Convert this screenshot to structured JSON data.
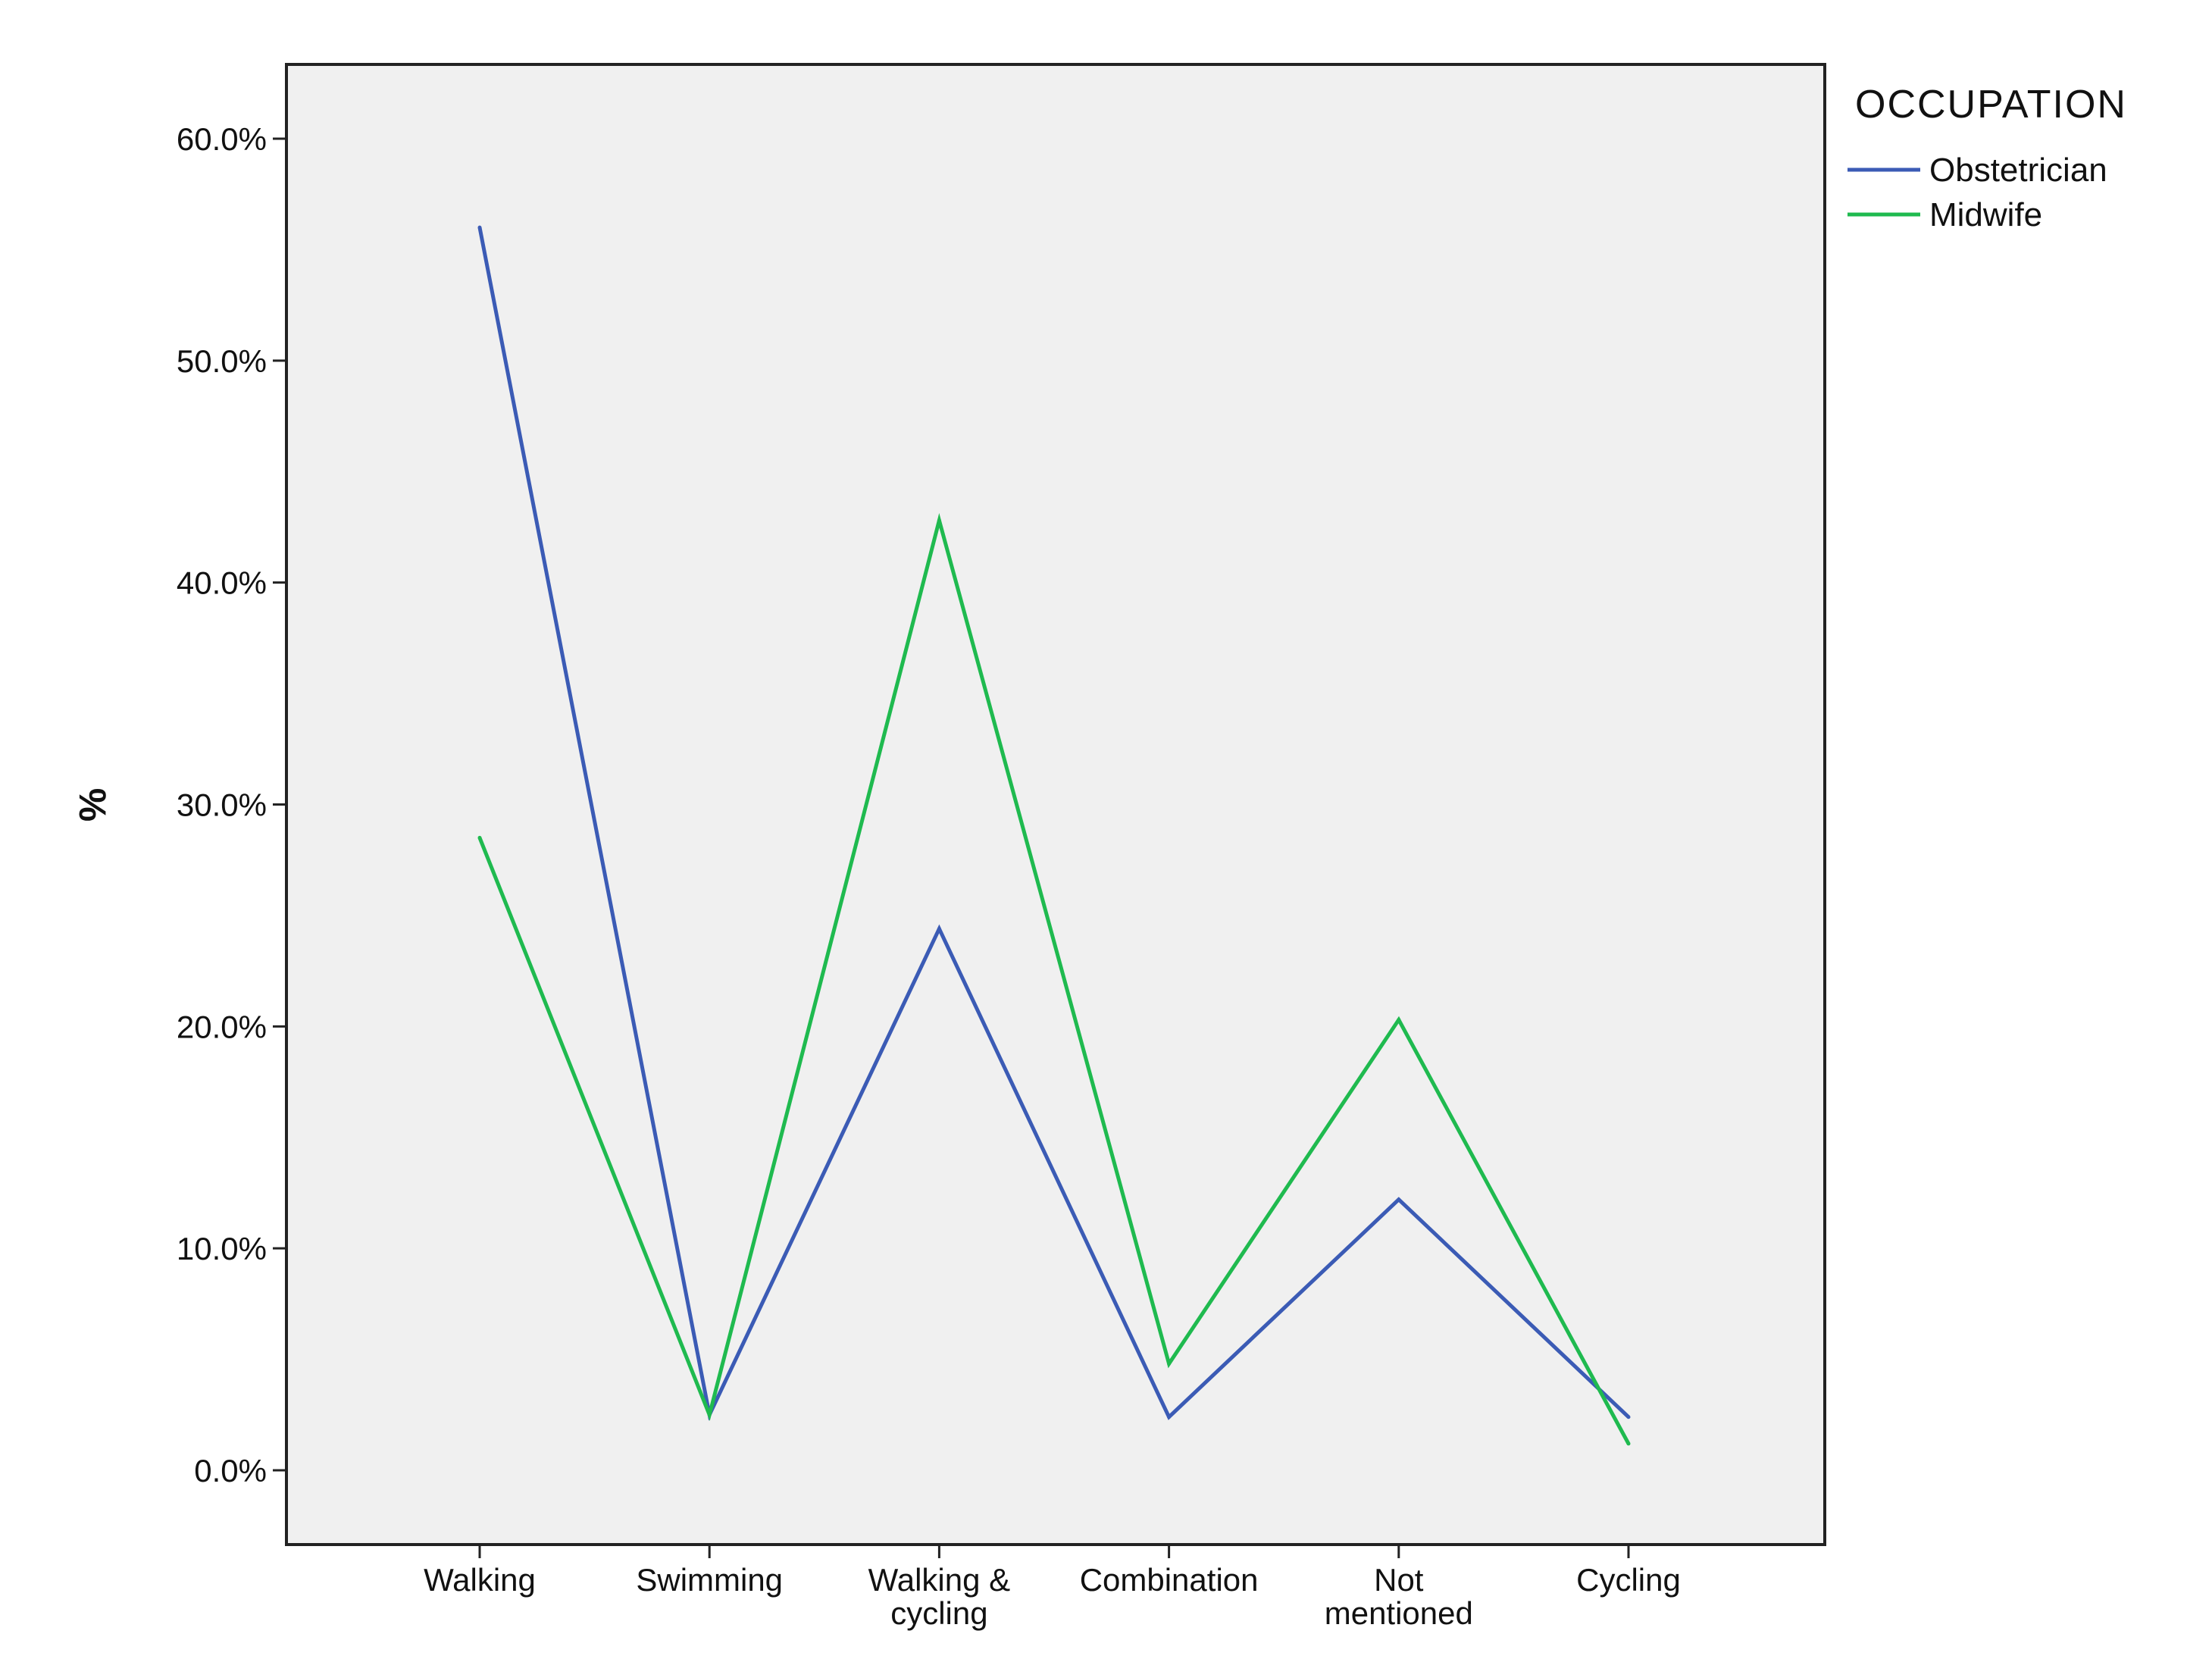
{
  "chart_data": {
    "type": "line",
    "title": "",
    "xlabel": "",
    "ylabel": "%",
    "ylim": [
      0,
      0.6
    ],
    "ytick_values": [
      0,
      0.1,
      0.2,
      0.3,
      0.4,
      0.5,
      0.6
    ],
    "ytick_labels": [
      "0.0%",
      "10.0%",
      "20.0%",
      "30.0%",
      "40.0%",
      "50.0%",
      "60.0%"
    ],
    "categories": [
      [
        "Walking"
      ],
      [
        "Swimming"
      ],
      [
        "Walking &",
        "cycling"
      ],
      [
        "Combination"
      ],
      [
        "Not",
        "mentioned"
      ],
      [
        "Cycling"
      ]
    ],
    "series": [
      {
        "name": "Obstetrician",
        "color": "#3b5bb5",
        "values": [
          0.56,
          0.025,
          0.244,
          0.024,
          0.122,
          0.024
        ]
      },
      {
        "name": "Midwife",
        "color": "#1fba4f",
        "values": [
          0.285,
          0.025,
          0.428,
          0.048,
          0.203,
          0.012
        ]
      }
    ],
    "legend": {
      "title": "OCCUPATION",
      "placement": "right"
    },
    "grid": false,
    "plot_background": "#f0f0f0"
  }
}
